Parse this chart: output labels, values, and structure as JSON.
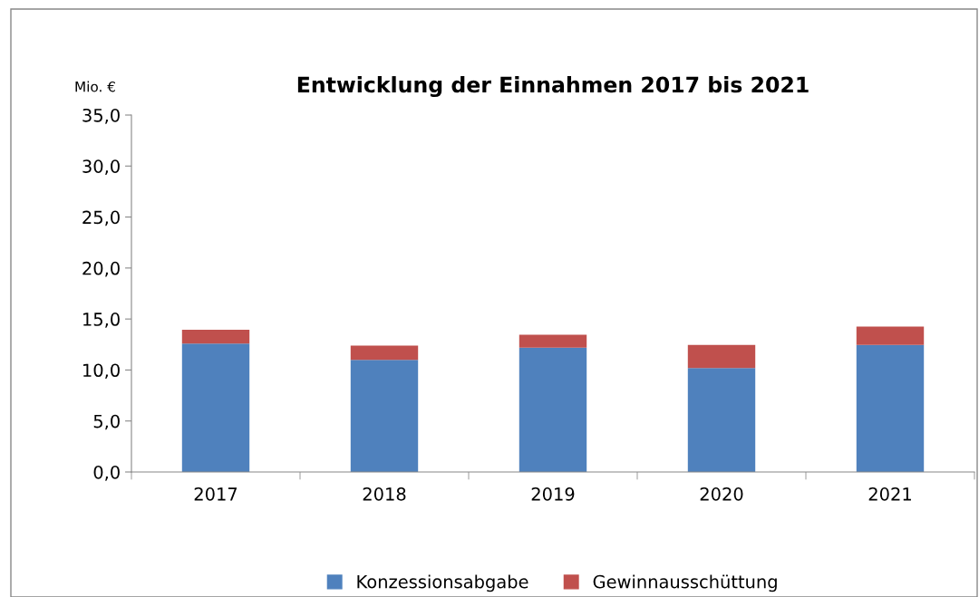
{
  "chart_data": {
    "type": "bar",
    "title": "Entwicklung der Einnahmen 2017 bis 2021",
    "ylabel": "Mio. €",
    "stacked": true,
    "categories": [
      "2017",
      "2018",
      "2019",
      "2020",
      "2021"
    ],
    "series": [
      {
        "name": "Konzessionsabgabe",
        "color": "#4f81bd",
        "values": [
          12.6,
          11.0,
          12.2,
          10.2,
          12.45
        ]
      },
      {
        "name": "Gewinnausschüttung",
        "color": "#c0504d",
        "values": [
          1.35,
          1.4,
          1.25,
          2.25,
          1.8
        ]
      }
    ],
    "ylim": [
      0,
      35
    ],
    "yticks": [
      {
        "value": 0,
        "label": "0,0"
      },
      {
        "value": 5,
        "label": "5,0"
      },
      {
        "value": 10,
        "label": "10,0"
      },
      {
        "value": 15,
        "label": "15,0"
      },
      {
        "value": 20,
        "label": "20,0"
      },
      {
        "value": 25,
        "label": "25,0"
      },
      {
        "value": 30,
        "label": "30,0"
      },
      {
        "value": 35,
        "label": "35,0"
      }
    ],
    "grid": false,
    "legend": "bottom"
  }
}
